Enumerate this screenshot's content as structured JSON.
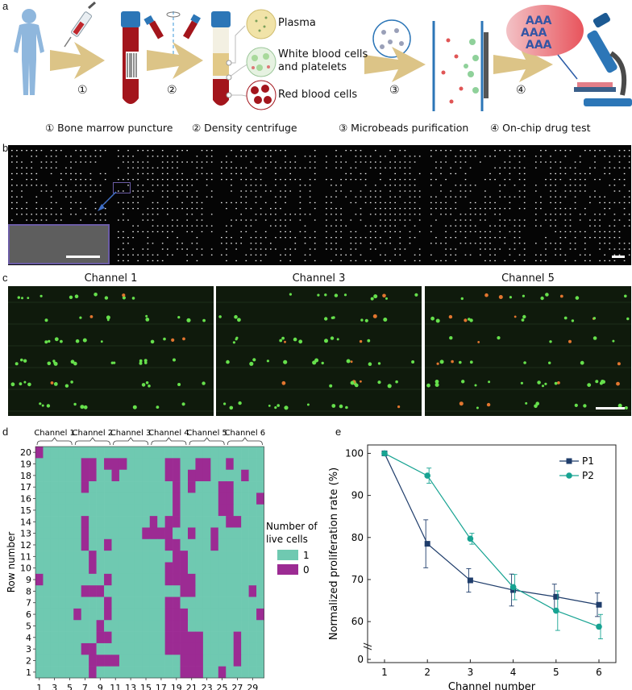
{
  "panel_a": {
    "label": "a",
    "tube_labels": {
      "plasma": "Plasma",
      "wbc_line1": "White blood cells",
      "wbc_line2": "and platelets",
      "rbc": "Red blood cells"
    },
    "step_numbers": [
      "①",
      "②",
      "③",
      "④"
    ],
    "steps": [
      "① Bone marrow puncture",
      "② Density centrifuge",
      "③ Microbeads purification",
      "④ On-chip drug test"
    ],
    "chip_letters": "AAA",
    "colors": {
      "arrow": "#dcc487",
      "body": "#8fb7dd",
      "blood": "#a3151c",
      "cap": "#2c76b7",
      "plasma": "#e2c987"
    }
  },
  "panel_b": {
    "label": "b"
  },
  "panel_c": {
    "label": "c",
    "titles": [
      "Channel 1",
      "Channel 3",
      "Channel 5"
    ]
  },
  "panel_d": {
    "label": "d",
    "channel_labels": [
      "Channel 1",
      "Channel 2",
      "Channel 3",
      "Channel 4",
      "Channel 5",
      "Channel 6"
    ],
    "ylabel": "Row number",
    "xlabel": "Column number",
    "yticks": [
      "20",
      "19",
      "18",
      "17",
      "16",
      "15",
      "14",
      "13",
      "12",
      "11",
      "10",
      "9",
      "8",
      "7",
      "6",
      "5",
      "4",
      "3",
      "2",
      "1"
    ],
    "xticks": [
      "1",
      "3",
      "5",
      "7",
      "9",
      "11",
      "13",
      "15",
      "17",
      "19",
      "21",
      "23",
      "25",
      "27",
      "29"
    ],
    "legend_title_line1": "Number of",
    "legend_title_line2": "live cells",
    "legend_items": [
      {
        "label": "1",
        "color": "#6fc9b1"
      },
      {
        "label": "0",
        "color": "#9c2b93"
      }
    ]
  },
  "panel_e": {
    "label": "e"
  },
  "chart_data": [
    {
      "type": "heatmap",
      "xlabel": "Column number",
      "ylabel": "Row number",
      "row_labels": [
        20,
        19,
        18,
        17,
        16,
        15,
        14,
        13,
        12,
        11,
        10,
        9,
        8,
        7,
        6,
        5,
        4,
        3,
        2,
        1
      ],
      "columns": 30,
      "values": [
        "100000000000000000000000000000",
        "000000110111000001100110010000",
        "000000110010000001101110000100",
        "000000100000000000101000110000",
        "000000000000000000100000110001",
        "000000000000000000100000110000",
        "000000100000000101100000011000",
        "000000100000001111001001000000",
        "000000100100000001100001000000",
        "000000010000000000110000000000",
        "000000010000000001110000000000",
        "100000000100000001111000000000",
        "000000111000000000011000000010",
        "000000000100000001100000000000",
        "000001000100000001110000000001",
        "000000001000000001110000000000",
        "000000001100000001111100001000",
        "000000110000000001111100001000",
        "000000011110000000011100001000",
        "000000010000000000011100100000"
      ]
    },
    {
      "type": "line",
      "xlabel": "Channel number",
      "ylabel": "Normalized proliferation rate (%)",
      "x": [
        1,
        2,
        3,
        4,
        5,
        6
      ],
      "xlim": [
        1,
        6
      ],
      "ylim": [
        0,
        100
      ],
      "yticks": [
        0,
        60,
        70,
        80,
        90,
        100
      ],
      "axis_break": true,
      "legend_position": "top-right",
      "series": [
        {
          "name": "P1",
          "color": "#1f3d6b",
          "marker": "square",
          "values": [
            100,
            78.5,
            69.8,
            67.5,
            65.9,
            64.0
          ],
          "errors": [
            0,
            5.7,
            2.8,
            3.8,
            3.0,
            2.8
          ]
        },
        {
          "name": "P2",
          "color": "#17a392",
          "marker": "circle",
          "values": [
            100,
            94.7,
            79.7,
            68.2,
            62.6,
            58.8
          ],
          "errors": [
            0,
            1.8,
            1.3,
            3.0,
            4.7,
            2.9
          ]
        }
      ]
    }
  ]
}
